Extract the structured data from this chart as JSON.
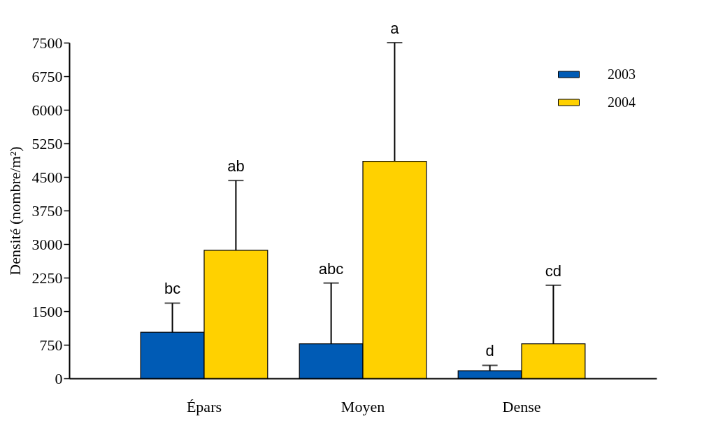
{
  "chart_data": {
    "type": "bar",
    "ylabel": "Densité (nombre/m²)",
    "categories": [
      "Épars",
      "Moyen",
      "Dense"
    ],
    "series": [
      {
        "name": "2003",
        "color": "#005bb5",
        "values": [
          1030,
          770,
          170
        ],
        "errors": [
          [
            1030,
            1680
          ],
          [
            770,
            2130
          ],
          [
            170,
            290
          ]
        ]
      },
      {
        "name": "2004",
        "color": "#ffd100",
        "values": [
          2860,
          4850,
          770
        ],
        "errors": [
          [
            2860,
            4420
          ],
          [
            4850,
            7500
          ],
          [
            770,
            2080
          ]
        ]
      }
    ],
    "ylim": [
      0,
      7500
    ],
    "yticks": [
      0,
      750,
      1500,
      2250,
      3000,
      3750,
      4500,
      5250,
      6000,
      6750,
      7500
    ],
    "annotations": [
      "bc",
      "ab",
      "abc",
      "a",
      "d",
      "cd"
    ],
    "grid": false,
    "legend": "top right"
  }
}
